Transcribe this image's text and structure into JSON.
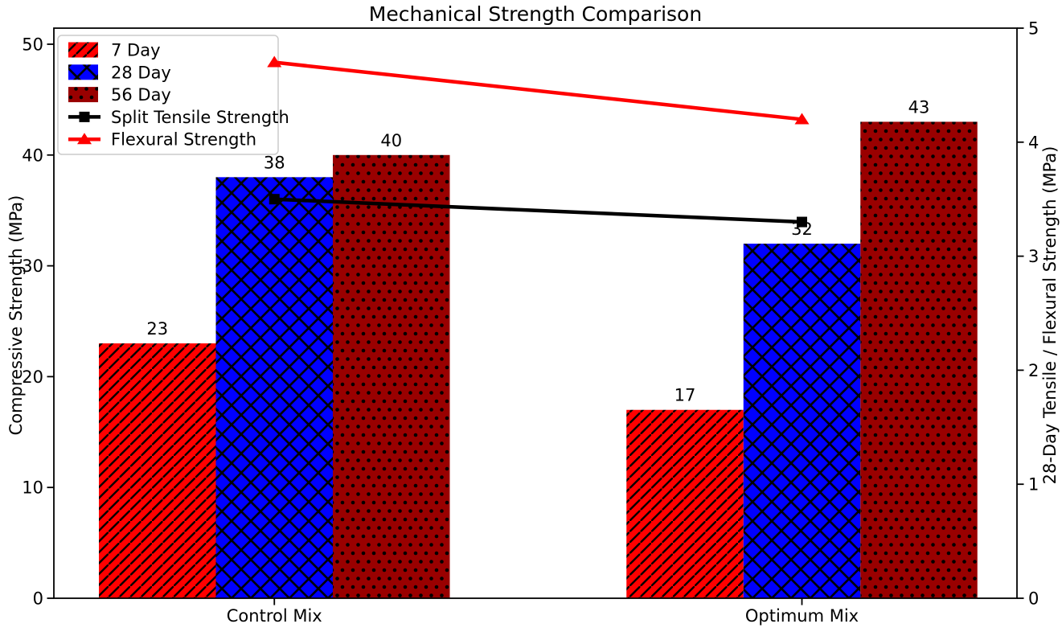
{
  "chart_data": {
    "type": "bar",
    "title": "Mechanical Strength Comparison",
    "categories": [
      "Control Mix",
      "Optimum Mix"
    ],
    "bar_series": [
      {
        "name": "7 Day",
        "values": [
          23,
          17
        ],
        "color": "#ff0000",
        "hatch": "/"
      },
      {
        "name": "28 Day",
        "values": [
          38,
          32
        ],
        "color": "#0000ff",
        "hatch": "x"
      },
      {
        "name": "56 Day",
        "values": [
          40,
          43
        ],
        "color": "#990000",
        "hatch": "."
      }
    ],
    "line_series": [
      {
        "name": "Split Tensile Strength",
        "values": [
          3.5,
          3.3
        ],
        "color": "#000000",
        "marker": "square"
      },
      {
        "name": "Flexural Strength",
        "values": [
          4.7,
          4.2
        ],
        "color": "#ff0000",
        "marker": "triangle"
      }
    ],
    "left_axis": {
      "label": "Compressive Strength (MPa)",
      "ticks": [
        0,
        10,
        20,
        30,
        40,
        50
      ],
      "min": 0,
      "max": 51.45
    },
    "right_axis": {
      "label": "28-Day Tensile / Flexural Strength (MPa)",
      "ticks": [
        0,
        1,
        2,
        3,
        4,
        5
      ],
      "min": 0,
      "max": 5
    },
    "legend": {
      "position": "upper left",
      "entries": [
        "7 Day",
        "28 Day",
        "56 Day",
        "Split Tensile Strength",
        "Flexural Strength"
      ]
    },
    "grid": false,
    "hatch_color": "#000000",
    "bar_value_labels": true
  }
}
